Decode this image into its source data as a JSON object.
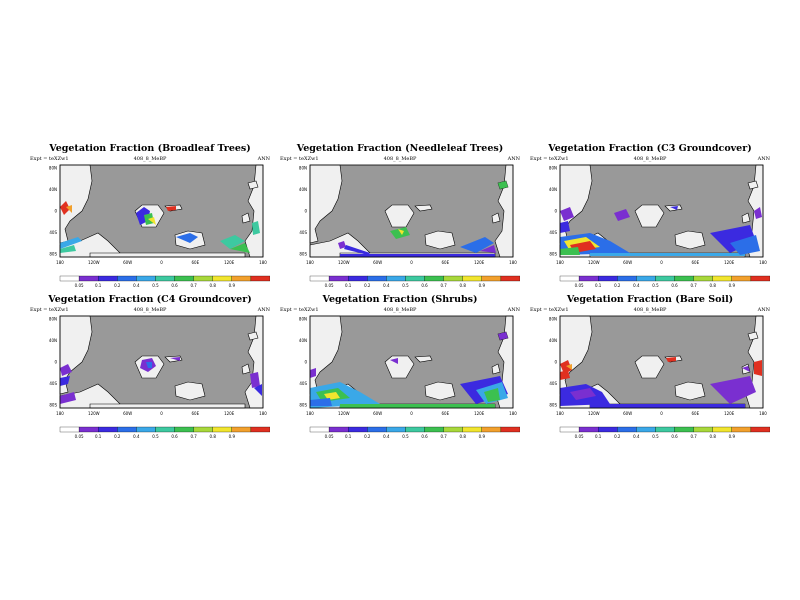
{
  "colors": {
    "ocean": "#999999",
    "land": "#f0f0f0",
    "scale": [
      "#ffffff",
      "#7a2fd0",
      "#3b2ae0",
      "#2b6ee8",
      "#3aa8e8",
      "#3dc9a0",
      "#3cc050",
      "#a8d83a",
      "#f1e52e",
      "#f2a02c",
      "#e03020"
    ]
  },
  "common": {
    "expt": "Expt = teXZw1",
    "subtitle": "408_8_MeBP",
    "season": "ANN",
    "lat_labels": [
      "80N",
      "40N",
      "0",
      "40S",
      "80S"
    ],
    "lon_labels": [
      "180",
      "120W",
      "60W",
      "0",
      "60E",
      "120E",
      "180"
    ]
  },
  "chart_data": [
    {
      "type": "heatmap",
      "title": "Vegetation Fraction (Broadleaf Trees)",
      "color_levels": [
        "0.05",
        "0.1",
        "0.2",
        "0.4",
        "0.5",
        "0.6",
        "0.7",
        "0.8",
        "0.9"
      ],
      "value_range": [
        0,
        1
      ],
      "xlim": [
        -180,
        180
      ],
      "ylim": [
        -90,
        90
      ]
    },
    {
      "type": "heatmap",
      "title": "Vegetation Fraction (Needleleaf Trees)",
      "color_levels": [
        "0.05",
        "0.1",
        "0.2",
        "0.4",
        "0.5",
        "0.6",
        "0.7",
        "0.8",
        "0.9"
      ],
      "value_range": [
        0,
        1
      ],
      "xlim": [
        -180,
        180
      ],
      "ylim": [
        -90,
        90
      ]
    },
    {
      "type": "heatmap",
      "title": "Vegetation Fraction (C3 Groundcover)",
      "color_levels": [
        "0.05",
        "0.1",
        "0.2",
        "0.4",
        "0.5",
        "0.6",
        "0.7",
        "0.8",
        "0.9"
      ],
      "value_range": [
        0,
        1
      ],
      "xlim": [
        -180,
        180
      ],
      "ylim": [
        -90,
        90
      ]
    },
    {
      "type": "heatmap",
      "title": "Vegetation Fraction (C4 Groundcover)",
      "color_levels": [
        "0.05",
        "0.1",
        "0.2",
        "0.4",
        "0.5",
        "0.6",
        "0.7",
        "0.8",
        "0.9"
      ],
      "value_range": [
        0,
        1
      ],
      "xlim": [
        -180,
        180
      ],
      "ylim": [
        -90,
        90
      ]
    },
    {
      "type": "heatmap",
      "title": "Vegetation Fraction (Shrubs)",
      "color_levels": [
        "0.05",
        "0.1",
        "0.2",
        "0.4",
        "0.5",
        "0.6",
        "0.7",
        "0.8",
        "0.9"
      ],
      "value_range": [
        0,
        1
      ],
      "xlim": [
        -180,
        180
      ],
      "ylim": [
        -90,
        90
      ]
    },
    {
      "type": "heatmap",
      "title": "Vegetation Fraction (Bare Soil)",
      "color_levels": [
        "0.05",
        "0.1",
        "0.2",
        "0.4",
        "0.5",
        "0.6",
        "0.7",
        "0.8",
        "0.9"
      ],
      "value_range": [
        0,
        1
      ],
      "xlim": [
        -180,
        180
      ],
      "ylim": [
        -90,
        90
      ]
    }
  ]
}
